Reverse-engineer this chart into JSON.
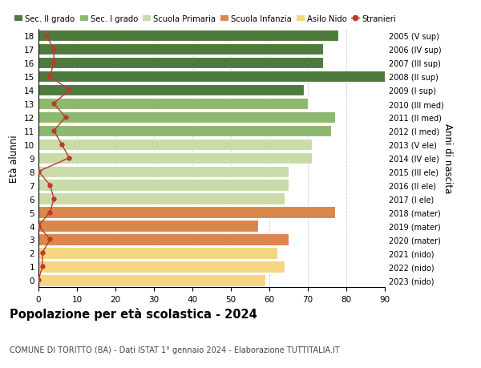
{
  "ages": [
    0,
    1,
    2,
    3,
    4,
    5,
    6,
    7,
    8,
    9,
    10,
    11,
    12,
    13,
    14,
    15,
    16,
    17,
    18
  ],
  "right_labels": [
    "2023 (nido)",
    "2022 (nido)",
    "2021 (nido)",
    "2020 (mater)",
    "2019 (mater)",
    "2018 (mater)",
    "2017 (I ele)",
    "2016 (II ele)",
    "2015 (III ele)",
    "2014 (IV ele)",
    "2013 (V ele)",
    "2012 (I med)",
    "2011 (II med)",
    "2010 (III med)",
    "2009 (I sup)",
    "2008 (II sup)",
    "2007 (III sup)",
    "2006 (IV sup)",
    "2005 (V sup)"
  ],
  "bar_values": [
    59,
    64,
    62,
    65,
    57,
    77,
    64,
    65,
    65,
    71,
    71,
    76,
    77,
    70,
    69,
    91,
    74,
    74,
    78
  ],
  "stranieri_values": [
    0,
    1,
    1,
    3,
    0,
    3,
    4,
    3,
    0,
    8,
    6,
    4,
    7,
    4,
    8,
    3,
    4,
    4,
    2
  ],
  "bar_colors": [
    "#f5d580",
    "#f5d580",
    "#f5d580",
    "#d9874a",
    "#d9874a",
    "#d9874a",
    "#c8dba8",
    "#c8dba8",
    "#c8dba8",
    "#c8dba8",
    "#c8dba8",
    "#8db870",
    "#8db870",
    "#8db870",
    "#4e7a3e",
    "#4e7a3e",
    "#4e7a3e",
    "#4e7a3e",
    "#4e7a3e"
  ],
  "legend_labels": [
    "Sec. II grado",
    "Sec. I grado",
    "Scuola Primaria",
    "Scuola Infanzia",
    "Asilo Nido",
    "Stranieri"
  ],
  "legend_colors": [
    "#4e7a3e",
    "#8db870",
    "#c8dba8",
    "#d9874a",
    "#f5d580",
    "#c0392b"
  ],
  "ylabel": "Età alunni",
  "right_ylabel": "Anni di nascita",
  "title": "Popolazione per età scolastica - 2024",
  "subtitle": "COMUNE DI TORITTO (BA) - Dati ISTAT 1° gennaio 2024 - Elaborazione TUTTITALIA.IT",
  "xlim": [
    0,
    90
  ],
  "xticks": [
    0,
    10,
    20,
    30,
    40,
    50,
    60,
    70,
    80,
    90
  ],
  "bar_height": 0.85,
  "stranieri_color": "#c0392b",
  "background_color": "#ffffff",
  "grid_color": "#cccccc"
}
